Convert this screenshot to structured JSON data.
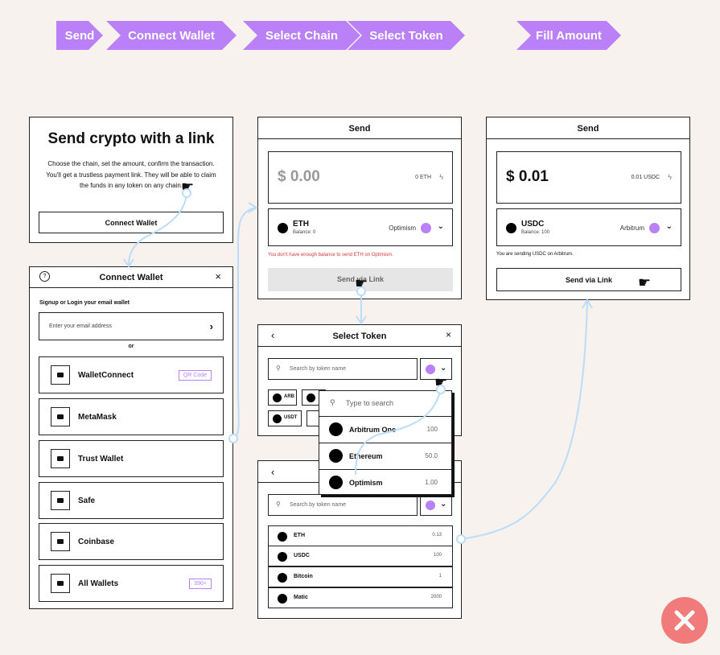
{
  "steps": [
    "Send",
    "Connect Wallet",
    "Select Chain",
    "Select Token",
    "Fill Amount"
  ],
  "panel1": {
    "title": "Send crypto with a link",
    "desc1": "Choose the chain, set the amount, confirm the transaction.",
    "desc2": "You'll get a trustless payment link. They will be able to claim",
    "desc3": "the funds in any token on any chain.",
    "button": "Connect Wallet"
  },
  "panel2": {
    "help_icon": "?",
    "title": "Connect Wallet",
    "close": "×",
    "signup_label": "Signup or Login your email wallet",
    "email_placeholder": "Enter your email address",
    "arrow": "›",
    "or": "or",
    "wallets": [
      {
        "name": "WalletConnect",
        "badge": "QR Code"
      },
      {
        "name": "MetaMask",
        "badge": ""
      },
      {
        "name": "Trust Wallet",
        "badge": ""
      },
      {
        "name": "Safe",
        "badge": ""
      },
      {
        "name": "Coinbase",
        "badge": ""
      },
      {
        "name": "All Wallets",
        "badge": "390+"
      }
    ]
  },
  "panel3": {
    "title": "Send",
    "amount": "$ 0.00",
    "equiv": "0 ETH",
    "token": "ETH",
    "balance": "Balance: 0",
    "chain": "Optimism",
    "error": "You don't have enough balance to send ETH on Optimism.",
    "button": "Send via Link"
  },
  "panel4": {
    "title": "Send",
    "amount": "$ 0.01",
    "equiv": "0.01 USDC",
    "token": "USDC",
    "balance": "Balance: 100",
    "chain": "Arbitrum",
    "info": "You are sending USDC on Arbitrum.",
    "button": "Send via Link"
  },
  "panel5": {
    "back": "‹",
    "title": "Select Token",
    "close": "×",
    "search_placeholder": "Search by token name",
    "chips": [
      "ARB",
      "USDT"
    ],
    "dropdown_placeholder": "Type to search",
    "chains": [
      {
        "name": "Arbitrum One",
        "value": "100"
      },
      {
        "name": "Ethereum",
        "value": "50.0"
      },
      {
        "name": "Optimism",
        "value": "1.00"
      }
    ]
  },
  "panel6": {
    "back": "‹",
    "search_placeholder": "Search by token name",
    "tokens": [
      {
        "name": "ETH",
        "value": "0.13"
      },
      {
        "name": "USDC",
        "value": "100"
      },
      {
        "name": "Bitcoin",
        "value": "1"
      },
      {
        "name": "Matic",
        "value": "2000"
      }
    ]
  },
  "colors": {
    "accent": "#b980f7",
    "background": "#f7f2ee",
    "connector": "#bcdcf7",
    "error": "#d23b3b",
    "close_badge": "#f17a7a"
  }
}
